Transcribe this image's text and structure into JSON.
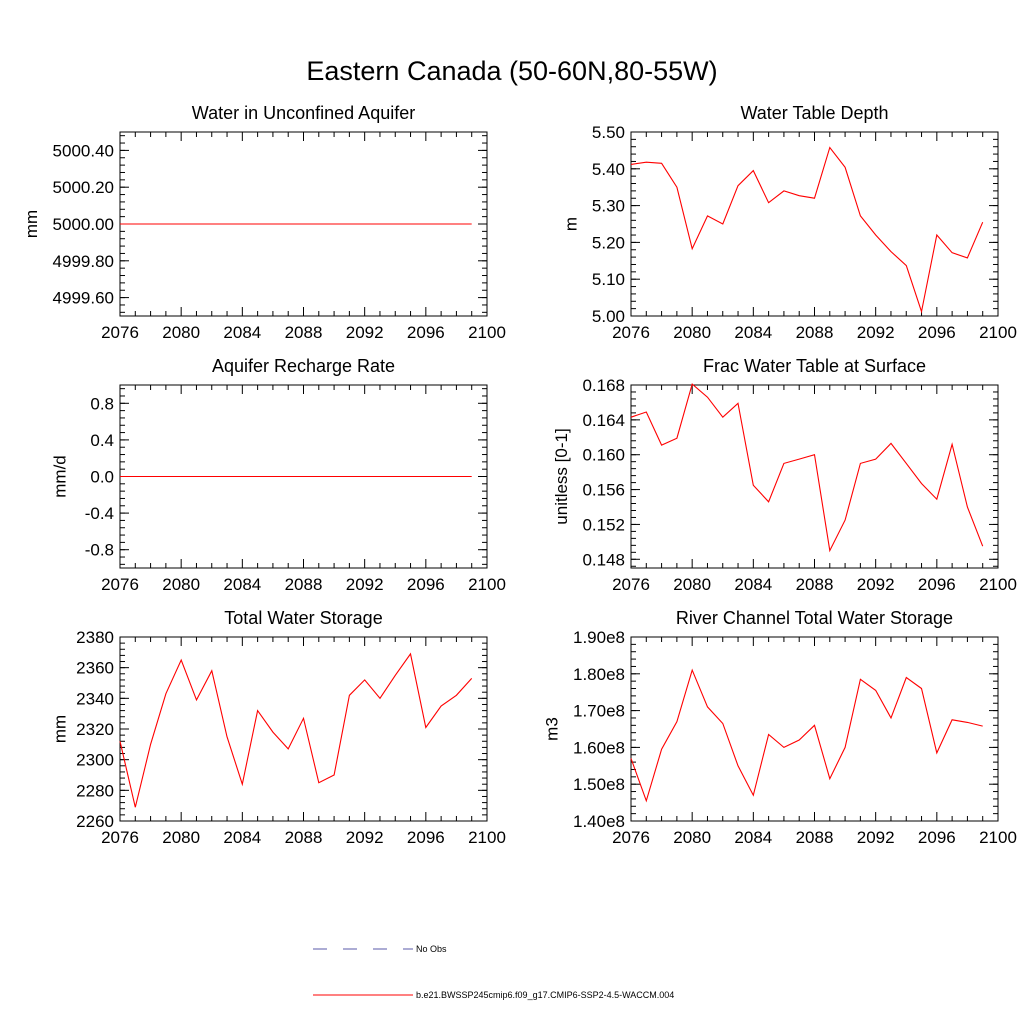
{
  "title": "Eastern Canada (50-60N,80-55W)",
  "colors": {
    "model_line": "#ff0000",
    "obs_line": "#5a5aa8",
    "axis": "#000000"
  },
  "legend": {
    "entries": [
      {
        "label": "No Obs",
        "style": "dashed",
        "color": "#5a5aa8"
      },
      {
        "label": "b.e21.BWSSP245cmip6.f09_g17.CMIP6-SSP2-4.5-WACCM.004",
        "style": "solid",
        "color": "#ff0000"
      }
    ]
  },
  "chart_data": [
    {
      "type": "line",
      "title": "Water in Unconfined Aquifer",
      "ylabel": "mm",
      "xlim": [
        2076,
        2100
      ],
      "ylim": [
        4999.5,
        5000.5
      ],
      "x_ticks": [
        2076,
        2080,
        2084,
        2088,
        2092,
        2096,
        2100
      ],
      "y_ticks": [
        4999.6,
        4999.8,
        5000.0,
        5000.2,
        5000.4
      ],
      "y_tick_labels": [
        "4999.60",
        "4999.80",
        "5000.00",
        "5000.20",
        "5000.40"
      ],
      "series": [
        {
          "x": [
            2076,
            2077,
            2078,
            2079,
            2080,
            2081,
            2082,
            2083,
            2084,
            2085,
            2086,
            2087,
            2088,
            2089,
            2090,
            2091,
            2092,
            2093,
            2094,
            2095,
            2096,
            2097,
            2098,
            2099
          ],
          "y": [
            5000,
            5000,
            5000,
            5000,
            5000,
            5000,
            5000,
            5000,
            5000,
            5000,
            5000,
            5000,
            5000,
            5000,
            5000,
            5000,
            5000,
            5000,
            5000,
            5000,
            5000,
            5000,
            5000,
            5000
          ]
        }
      ]
    },
    {
      "type": "line",
      "title": "Water Table Depth",
      "ylabel": "m",
      "xlim": [
        2076,
        2100
      ],
      "ylim": [
        5.0,
        5.5
      ],
      "x_ticks": [
        2076,
        2080,
        2084,
        2088,
        2092,
        2096,
        2100
      ],
      "y_ticks": [
        5.0,
        5.1,
        5.2,
        5.3,
        5.4,
        5.5
      ],
      "y_tick_labels": [
        "5.00",
        "5.10",
        "5.20",
        "5.30",
        "5.40",
        "5.50"
      ],
      "series": [
        {
          "x": [
            2076,
            2077,
            2078,
            2079,
            2080,
            2081,
            2082,
            2083,
            2084,
            2085,
            2086,
            2087,
            2088,
            2089,
            2090,
            2091,
            2092,
            2093,
            2094,
            2095,
            2096,
            2097,
            2098,
            2099
          ],
          "y": [
            5.412,
            5.418,
            5.415,
            5.35,
            5.183,
            5.272,
            5.25,
            5.354,
            5.395,
            5.308,
            5.34,
            5.327,
            5.32,
            5.458,
            5.404,
            5.272,
            5.22,
            5.175,
            5.137,
            5.012,
            5.22,
            5.172,
            5.158,
            5.255
          ]
        }
      ]
    },
    {
      "type": "line",
      "title": "Aquifer Recharge Rate",
      "ylabel": "mm/d",
      "xlim": [
        2076,
        2100
      ],
      "ylim": [
        -1.0,
        1.0
      ],
      "x_ticks": [
        2076,
        2080,
        2084,
        2088,
        2092,
        2096,
        2100
      ],
      "y_ticks": [
        -0.8,
        -0.4,
        0.0,
        0.4,
        0.8
      ],
      "y_tick_labels": [
        "-0.8",
        "-0.4",
        "0.0",
        "0.4",
        "0.8"
      ],
      "series": [
        {
          "x": [
            2076,
            2077,
            2078,
            2079,
            2080,
            2081,
            2082,
            2083,
            2084,
            2085,
            2086,
            2087,
            2088,
            2089,
            2090,
            2091,
            2092,
            2093,
            2094,
            2095,
            2096,
            2097,
            2098,
            2099
          ],
          "y": [
            0,
            0,
            0,
            0,
            0,
            0,
            0,
            0,
            0,
            0,
            0,
            0,
            0,
            0,
            0,
            0,
            0,
            0,
            0,
            0,
            0,
            0,
            0,
            0
          ]
        }
      ]
    },
    {
      "type": "line",
      "title": "Frac Water Table at Surface",
      "ylabel": "unitless [0-1]",
      "xlim": [
        2076,
        2100
      ],
      "ylim": [
        0.147,
        0.168
      ],
      "x_ticks": [
        2076,
        2080,
        2084,
        2088,
        2092,
        2096,
        2100
      ],
      "y_ticks": [
        0.148,
        0.152,
        0.156,
        0.16,
        0.164,
        0.168
      ],
      "y_tick_labels": [
        "0.148",
        "0.152",
        "0.156",
        "0.160",
        "0.164",
        "0.168"
      ],
      "series": [
        {
          "x": [
            2076,
            2077,
            2078,
            2079,
            2080,
            2081,
            2082,
            2083,
            2084,
            2085,
            2086,
            2087,
            2088,
            2089,
            2090,
            2091,
            2092,
            2093,
            2094,
            2095,
            2096,
            2097,
            2098,
            2099
          ],
          "y": [
            0.1643,
            0.1649,
            0.1611,
            0.1619,
            0.1681,
            0.1666,
            0.1643,
            0.1659,
            0.1565,
            0.1546,
            0.159,
            0.1595,
            0.16,
            0.149,
            0.1525,
            0.159,
            0.1595,
            0.1613,
            0.159,
            0.1567,
            0.1549,
            0.1612,
            0.154,
            0.1495
          ]
        }
      ]
    },
    {
      "type": "line",
      "title": "Total Water Storage",
      "ylabel": "mm",
      "xlim": [
        2076,
        2100
      ],
      "ylim": [
        2260,
        2380
      ],
      "x_ticks": [
        2076,
        2080,
        2084,
        2088,
        2092,
        2096,
        2100
      ],
      "y_ticks": [
        2260,
        2280,
        2300,
        2320,
        2340,
        2360,
        2380
      ],
      "y_tick_labels": [
        "2260",
        "2280",
        "2300",
        "2320",
        "2340",
        "2360",
        "2380"
      ],
      "series": [
        {
          "x": [
            2076,
            2077,
            2078,
            2079,
            2080,
            2081,
            2082,
            2083,
            2084,
            2085,
            2086,
            2087,
            2088,
            2089,
            2090,
            2091,
            2092,
            2093,
            2094,
            2095,
            2096,
            2097,
            2098,
            2099
          ],
          "y": [
            2312,
            2269,
            2310,
            2343,
            2365,
            2339,
            2358,
            2315,
            2284,
            2332,
            2318,
            2307,
            2327,
            2285,
            2290,
            2342,
            2352,
            2340,
            2355,
            2369,
            2321,
            2335,
            2342,
            2353
          ]
        }
      ]
    },
    {
      "type": "line",
      "title": "River Channel Total Water Storage",
      "ylabel": "m3",
      "xlim": [
        2076,
        2100
      ],
      "ylim": [
        140000000,
        190000000
      ],
      "x_ticks": [
        2076,
        2080,
        2084,
        2088,
        2092,
        2096,
        2100
      ],
      "y_ticks": [
        140000000,
        150000000,
        160000000,
        170000000,
        180000000,
        190000000
      ],
      "y_tick_labels": [
        "1.40e8",
        "1.50e8",
        "1.60e8",
        "1.70e8",
        "1.80e8",
        "1.90e8"
      ],
      "series": [
        {
          "x": [
            2076,
            2077,
            2078,
            2079,
            2080,
            2081,
            2082,
            2083,
            2084,
            2085,
            2086,
            2087,
            2088,
            2089,
            2090,
            2091,
            2092,
            2093,
            2094,
            2095,
            2096,
            2097,
            2098,
            2099
          ],
          "y": [
            157000000,
            145500000,
            159500000,
            167000000,
            181000000,
            171000000,
            166500000,
            155000000,
            147000000,
            163500000,
            160000000,
            162000000,
            166000000,
            151500000,
            160000000,
            178500000,
            175500000,
            168000000,
            179000000,
            176000000,
            158500000,
            167500000,
            166800000,
            165800000
          ]
        }
      ]
    }
  ]
}
